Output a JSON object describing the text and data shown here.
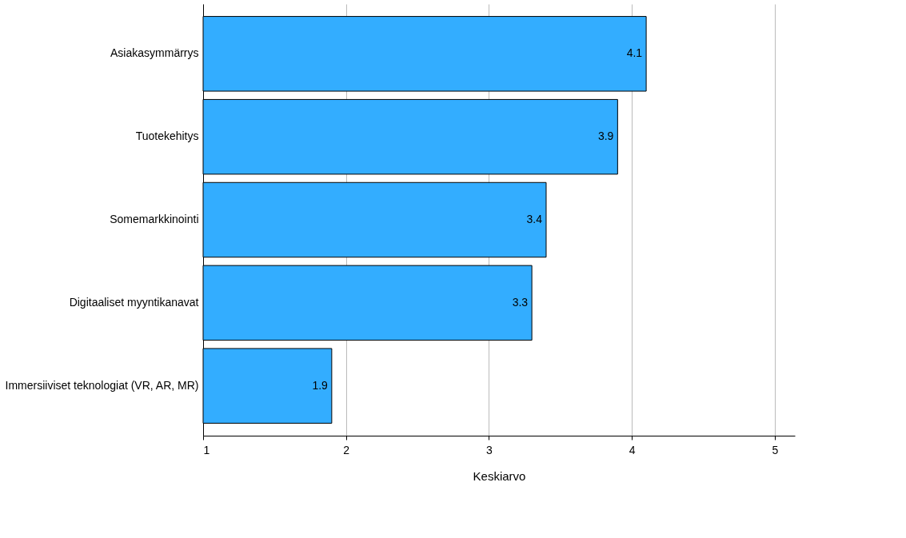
{
  "chart_data": {
    "type": "bar",
    "orientation": "horizontal",
    "xlabel": "Keskiarvo",
    "categories": [
      "Asiakasymmärrys",
      "Tuotekehitys",
      "Somemarkkinointi",
      "Digitaaliset myyntikanavat",
      "Immersiiviset teknologiat (VR, AR, MR)"
    ],
    "values": [
      4.1,
      3.9,
      3.4,
      3.3,
      1.9
    ],
    "color": "#33adff",
    "data_labels": true,
    "xlim": [
      1,
      5.14
    ],
    "xticks": [
      1,
      2,
      3,
      4,
      5
    ],
    "grid": "x"
  }
}
